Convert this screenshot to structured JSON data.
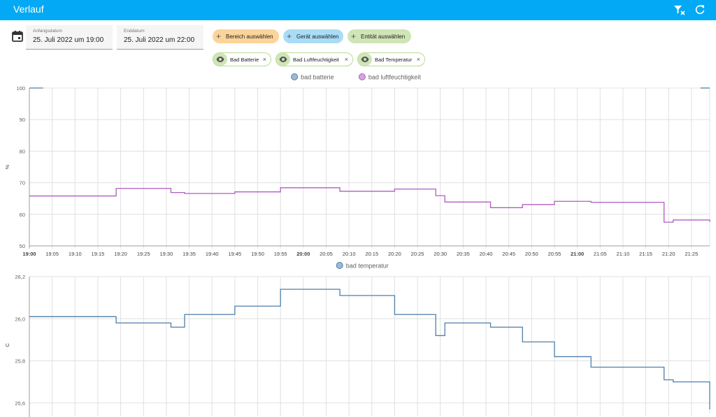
{
  "header": {
    "title": "Verlauf",
    "clear_filter_icon": "filter-remove-icon",
    "refresh_icon": "refresh-icon"
  },
  "date_range": {
    "icon": "calendar-icon",
    "start": {
      "label": "Anfangsdatum",
      "value": "25. Juli 2022 um 19:00"
    },
    "end": {
      "label": "Enddatum",
      "value": "25. Juli 2022 um 22:00"
    }
  },
  "target_buttons": [
    {
      "label": "Bereich auswählen",
      "color": "#fcd49a"
    },
    {
      "label": "Gerät auswählen",
      "color": "#a9dcf7"
    },
    {
      "label": "Entität auswählen",
      "color": "#cfe5b5"
    }
  ],
  "entities": [
    {
      "label": "Bad Batterie",
      "icon": "eye-icon"
    },
    {
      "label": "Bad Luftfeuchtigkeit",
      "icon": "eye-icon"
    },
    {
      "label": "Bad Temperatur",
      "icon": "eye-icon"
    }
  ],
  "chart_data": [
    {
      "type": "line",
      "step": true,
      "ylabel": "%",
      "ylim": [
        50,
        100
      ],
      "yticks": [
        "100",
        "90",
        "80",
        "70",
        "60",
        "50"
      ],
      "xlim": [
        "19:00",
        "21:29"
      ],
      "xticks": [
        "19:00",
        "19:05",
        "19:10",
        "19:15",
        "19:20",
        "19:25",
        "19:30",
        "19:35",
        "19:40",
        "19:45",
        "19:50",
        "19:55",
        "20:00",
        "20:05",
        "20:10",
        "20:15",
        "20:20",
        "20:25",
        "20:30",
        "20:35",
        "20:40",
        "20:45",
        "20:50",
        "20:55",
        "21:00",
        "21:05",
        "21:10",
        "21:15",
        "21:20",
        "21:25"
      ],
      "bold_ticks": [
        "19:00",
        "20:00",
        "21:00"
      ],
      "grid": true,
      "legend": "top-center",
      "series": [
        {
          "name": "bad batterie",
          "color": "#4e7fab",
          "points": [
            [
              "19:00",
              100
            ],
            [
              "19:03",
              100
            ]
          ],
          "points2": [
            [
              "21:27",
              100
            ],
            [
              "21:29",
              100
            ]
          ]
        },
        {
          "name": "bad luftfeuchtigkeit",
          "color": "#b05cc1",
          "points": [
            [
              "19:00",
              65.8
            ],
            [
              "19:11",
              65.8
            ],
            [
              "19:19",
              68.2
            ],
            [
              "19:31",
              66.9
            ],
            [
              "19:34",
              66.6
            ],
            [
              "19:45",
              67.1
            ],
            [
              "19:55",
              68.4
            ],
            [
              "20:08",
              67.3
            ],
            [
              "20:20",
              68.0
            ],
            [
              "20:29",
              65.9
            ],
            [
              "20:31",
              63.9
            ],
            [
              "20:41",
              62.1
            ],
            [
              "20:48",
              63.1
            ],
            [
              "20:55",
              64.1
            ],
            [
              "21:03",
              63.8
            ],
            [
              "21:19",
              57.5
            ],
            [
              "21:21",
              58.2
            ],
            [
              "21:29",
              57.6
            ]
          ]
        }
      ]
    },
    {
      "type": "line",
      "step": true,
      "ylabel": "C",
      "ylim": [
        25.55,
        26.2
      ],
      "yticks": [
        "26,2",
        "26,0",
        "25,8",
        "25,6"
      ],
      "xlim": [
        "19:00",
        "21:29"
      ],
      "grid": true,
      "legend": "top-center",
      "series": [
        {
          "name": "bad temperatur",
          "color": "#4e7fab",
          "points": [
            [
              "19:00",
              26.01
            ],
            [
              "19:11",
              26.01
            ],
            [
              "19:19",
              25.98
            ],
            [
              "19:31",
              25.96
            ],
            [
              "19:34",
              26.02
            ],
            [
              "19:45",
              26.06
            ],
            [
              "19:55",
              26.14
            ],
            [
              "20:08",
              26.11
            ],
            [
              "20:20",
              26.02
            ],
            [
              "20:29",
              25.92
            ],
            [
              "20:31",
              25.98
            ],
            [
              "20:41",
              25.96
            ],
            [
              "20:48",
              25.89
            ],
            [
              "20:55",
              25.82
            ],
            [
              "21:03",
              25.77
            ],
            [
              "21:19",
              25.71
            ],
            [
              "21:21",
              25.7
            ],
            [
              "21:29",
              25.57
            ]
          ]
        }
      ]
    }
  ]
}
